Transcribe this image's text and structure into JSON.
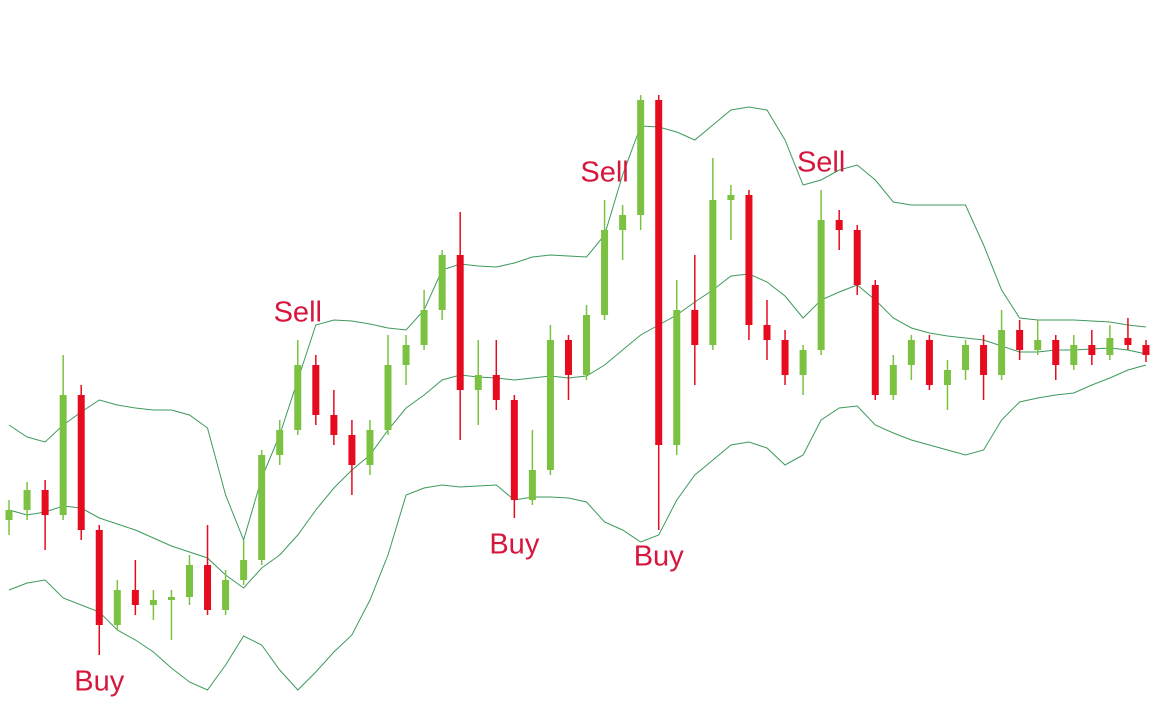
{
  "chart_data": {
    "type": "candlestick",
    "ylim": [
      0,
      718
    ],
    "up_color": "#7cc242",
    "down_color": "#e60b1f",
    "open": [
      198,
      208,
      228,
      203,
      323,
      188,
      93,
      128,
      113,
      118,
      121,
      153,
      108,
      138,
      158,
      263,
      288,
      353,
      303,
      283,
      253,
      288,
      353,
      373,
      408,
      463,
      328,
      343,
      318,
      218,
      248,
      378,
      343,
      403,
      488,
      503,
      618,
      273,
      408,
      373,
      518,
      523,
      393,
      378,
      343,
      368,
      498,
      488,
      433,
      323,
      353,
      378,
      333,
      348,
      373,
      343,
      388,
      368,
      378,
      353,
      373,
      363,
      380,
      373
    ],
    "high": [
      218,
      236,
      238,
      363,
      333,
      193,
      138,
      158,
      128,
      128,
      163,
      193,
      148,
      178,
      268,
      298,
      378,
      363,
      328,
      298,
      298,
      383,
      383,
      428,
      468,
      506,
      378,
      378,
      323,
      288,
      393,
      383,
      413,
      518,
      513,
      623,
      623,
      438,
      463,
      560,
      533,
      528,
      418,
      388,
      373,
      528,
      508,
      493,
      438,
      363,
      383,
      383,
      358,
      378,
      383,
      408,
      398,
      398,
      383,
      383,
      388,
      393,
      400,
      378
    ],
    "low": [
      183,
      198,
      168,
      198,
      178,
      63,
      88,
      103,
      98,
      78,
      113,
      103,
      103,
      133,
      153,
      253,
      283,
      293,
      273,
      223,
      243,
      283,
      333,
      368,
      398,
      278,
      293,
      308,
      200,
      213,
      243,
      318,
      338,
      398,
      458,
      488,
      188,
      263,
      333,
      368,
      478,
      378,
      358,
      333,
      323,
      363,
      468,
      423,
      318,
      318,
      338,
      328,
      308,
      338,
      318,
      338,
      358,
      363,
      338,
      348,
      353,
      358,
      368,
      356
    ],
    "close": [
      208,
      228,
      203,
      323,
      188,
      93,
      128,
      113,
      118,
      121,
      153,
      108,
      138,
      158,
      263,
      288,
      353,
      303,
      283,
      253,
      288,
      353,
      373,
      408,
      463,
      328,
      343,
      318,
      218,
      248,
      378,
      343,
      403,
      488,
      503,
      618,
      273,
      408,
      373,
      518,
      523,
      393,
      378,
      343,
      368,
      498,
      488,
      433,
      323,
      353,
      378,
      333,
      348,
      373,
      343,
      388,
      368,
      378,
      353,
      373,
      363,
      380,
      373,
      363
    ],
    "bands": [
      {
        "color": "#3d9a5c",
        "values": [
          293,
          281,
          276,
          293,
          306,
          318,
          313,
          310,
          308,
          308,
          303,
          290,
          223,
          178,
          240,
          283,
          338,
          393,
          398,
          397,
          394,
          390,
          388,
          408,
          448,
          454,
          452,
          451,
          455,
          461,
          463,
          462,
          461,
          483,
          543,
          592,
          591,
          586,
          578,
          593,
          608,
          611,
          608,
          578,
          533,
          538,
          548,
          553,
          538,
          516,
          513,
          513,
          513,
          513,
          473,
          428,
          400,
          398,
          398,
          398,
          397,
          396,
          393,
          391
        ]
      },
      {
        "color": "#3d9a5c",
        "values": [
          208,
          203,
          206,
          212,
          210,
          200,
          194,
          188,
          180,
          172,
          166,
          160,
          143,
          130,
          150,
          163,
          183,
          208,
          230,
          248,
          263,
          288,
          310,
          323,
          338,
          343,
          341,
          340,
          338,
          340,
          342,
          340,
          342,
          353,
          368,
          383,
          393,
          403,
          416,
          428,
          442,
          444,
          436,
          422,
          400,
          418,
          426,
          433,
          418,
          400,
          390,
          385,
          382,
          380,
          378,
          372,
          366,
          366,
          368,
          368,
          369,
          370,
          368,
          364
        ]
      },
      {
        "color": "#3d9a5c",
        "values": [
          128,
          135,
          138,
          120,
          113,
          106,
          88,
          78,
          66,
          50,
          36,
          28,
          53,
          82,
          73,
          48,
          28,
          46,
          66,
          83,
          118,
          163,
          223,
          230,
          233,
          231,
          232,
          233,
          218,
          221,
          221,
          220,
          216,
          196,
          188,
          176,
          183,
          218,
          243,
          258,
          273,
          276,
          270,
          253,
          263,
          298,
          310,
          312,
          293,
          285,
          278,
          273,
          268,
          263,
          268,
          298,
          316,
          320,
          323,
          325,
          333,
          340,
          348,
          353
        ]
      }
    ],
    "annotation_color": "#d6163c",
    "annotations": [
      {
        "text": "Buy",
        "x": 5,
        "position": "below"
      },
      {
        "text": "Sell",
        "x": 16,
        "position": "above"
      },
      {
        "text": "Buy",
        "x": 28,
        "position": "below"
      },
      {
        "text": "Sell",
        "x": 33,
        "position": "above"
      },
      {
        "text": "Buy",
        "x": 36,
        "position": "below"
      },
      {
        "text": "Sell",
        "x": 45,
        "position": "above"
      }
    ]
  }
}
